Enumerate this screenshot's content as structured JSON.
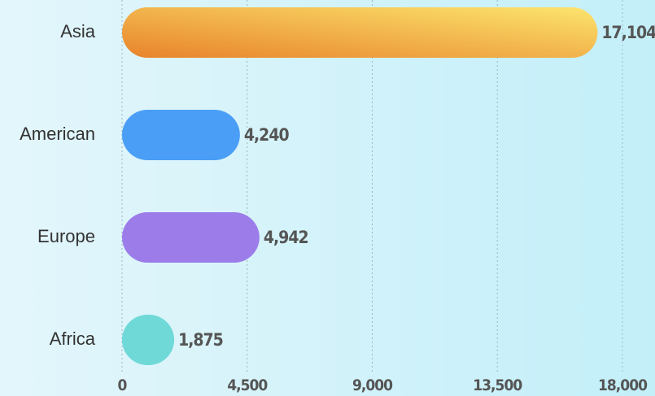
{
  "chart_data": {
    "type": "hbar",
    "categories": [
      "Asia",
      "American",
      "Europe",
      "Africa"
    ],
    "values": [
      17104,
      4240,
      4942,
      1875
    ],
    "value_labels": [
      "17,104",
      "4,240",
      "4,942",
      "1,875"
    ],
    "colors": [
      [
        "#e8832b",
        "#fce56e"
      ],
      "#4a9ef6",
      "#9c7ce9",
      "#6fd9d8"
    ],
    "xlim": [
      0,
      18000
    ],
    "xticks": [
      0,
      {
        "value": 4500,
        "label": "4,500"
      },
      {
        "value": 9000,
        "label": "9,000"
      },
      {
        "value": 13500,
        "label": "13,500"
      },
      {
        "value": 18000,
        "label": "18,000"
      }
    ],
    "grid": true
  }
}
